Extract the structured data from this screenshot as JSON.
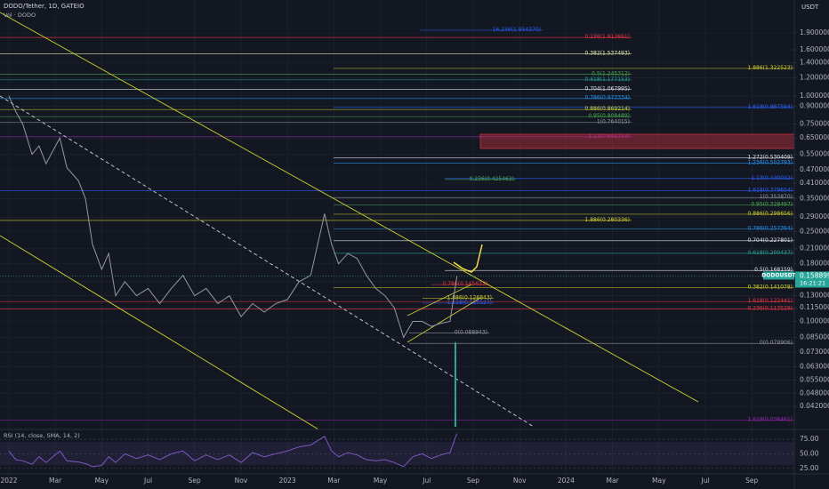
{
  "chart_data": {
    "type": "line",
    "title": "DODO/Tether, 1D, GATEIO",
    "subtitle": "Vol · DODO",
    "y_axis_label": "USDT",
    "log_scale": true,
    "grid": true,
    "symbol": "DODOUSDT",
    "countdown": "16:21:21",
    "last_price": {
      "value": 0.158899,
      "label": "0.158899"
    },
    "x": [
      0,
      0.3,
      0.6,
      1.0,
      1.3,
      1.6,
      2.2,
      2.5,
      3.0,
      3.3,
      3.6,
      4.0,
      4.3,
      4.6,
      5.0,
      5.5,
      6.0,
      6.5,
      7.0,
      7.5,
      8.0,
      8.5,
      9.0,
      9.5,
      10.0,
      10.5,
      11.0,
      11.5,
      12.0,
      12.5,
      13.0,
      13.6,
      13.9,
      14.2,
      14.6,
      15.0,
      15.4,
      15.8,
      16.2,
      16.6,
      17.0,
      17.4,
      17.8,
      18.2,
      18.6,
      19.0,
      19.3
    ],
    "series": [
      {
        "name": "DODOUSDT",
        "color": "#9598a1",
        "values": [
          1.0,
          0.85,
          0.75,
          0.55,
          0.6,
          0.5,
          0.65,
          0.48,
          0.42,
          0.35,
          0.22,
          0.17,
          0.2,
          0.13,
          0.15,
          0.13,
          0.14,
          0.12,
          0.14,
          0.16,
          0.13,
          0.14,
          0.12,
          0.13,
          0.105,
          0.12,
          0.11,
          0.12,
          0.125,
          0.15,
          0.16,
          0.3,
          0.22,
          0.18,
          0.2,
          0.19,
          0.16,
          0.14,
          0.13,
          0.115,
          0.085,
          0.1,
          0.1,
          0.095,
          0.098,
          0.1,
          0.158899
        ]
      }
    ],
    "xlim": [
      -0.38,
      33.83
    ],
    "xticks": [
      {
        "value": 0,
        "label": "2022"
      },
      {
        "value": 2,
        "label": "Mar"
      },
      {
        "value": 4,
        "label": "May"
      },
      {
        "value": 6,
        "label": "Jul"
      },
      {
        "value": 8,
        "label": "Sep"
      },
      {
        "value": 10,
        "label": "Nov"
      },
      {
        "value": 12,
        "label": "2023"
      },
      {
        "value": 14,
        "label": "Mar"
      },
      {
        "value": 16,
        "label": "May"
      },
      {
        "value": 18,
        "label": "Jul"
      },
      {
        "value": 20,
        "label": "Sep"
      },
      {
        "value": 22,
        "label": "Nov"
      },
      {
        "value": 24,
        "label": "2024"
      },
      {
        "value": 26,
        "label": "Mar"
      },
      {
        "value": 28,
        "label": "May"
      },
      {
        "value": 30,
        "label": "Jul"
      },
      {
        "value": 32,
        "label": "Sep"
      }
    ],
    "ylim": [
      0.0332,
      2.659
    ],
    "yticks": [
      {
        "value": 1.9,
        "label": "1.900000"
      },
      {
        "value": 1.6,
        "label": "1.600000"
      },
      {
        "value": 1.4,
        "label": "1.400000"
      },
      {
        "value": 1.2,
        "label": "1.200000"
      },
      {
        "value": 1.0,
        "label": "1.000000"
      },
      {
        "value": 0.9,
        "label": "0.900000"
      },
      {
        "value": 0.75,
        "label": "0.750000"
      },
      {
        "value": 0.65,
        "label": "0.650000"
      },
      {
        "value": 0.55,
        "label": "0.550000"
      },
      {
        "value": 0.47,
        "label": "0.470000"
      },
      {
        "value": 0.41,
        "label": "0.410000"
      },
      {
        "value": 0.35,
        "label": "0.350000"
      },
      {
        "value": 0.29,
        "label": "0.290000"
      },
      {
        "value": 0.25,
        "label": "0.250000"
      },
      {
        "value": 0.21,
        "label": "0.210000"
      },
      {
        "value": 0.18,
        "label": "0.180000"
      },
      {
        "value": 0.15,
        "label": "0.150000"
      },
      {
        "value": 0.13,
        "label": "0.130000"
      },
      {
        "value": 0.115,
        "label": "0.115000"
      },
      {
        "value": 0.1,
        "label": "0.100000"
      },
      {
        "value": 0.085,
        "label": "0.085000"
      },
      {
        "value": 0.073,
        "label": "0.073000"
      },
      {
        "value": 0.063,
        "label": "0.063000"
      },
      {
        "value": 0.055,
        "label": "0.055000"
      },
      {
        "value": 0.048,
        "label": "0.048000"
      },
      {
        "value": 0.042,
        "label": "0.042000"
      }
    ],
    "levels": [
      {
        "label": "16.236(1.954370)",
        "value": 1.95437,
        "color": "#2962ff"
      },
      {
        "label": "0.236(1.813691)",
        "value": 1.813691,
        "color": "#f23645"
      },
      {
        "label": "0.382(1.537493)",
        "value": 1.537493,
        "color": "#e8e8b0"
      },
      {
        "label": "1.886(1.322523)",
        "value": 1.322523,
        "color": "#d4d42a"
      },
      {
        "label": "0.5(1.245312)",
        "value": 1.245312,
        "color": "#4caf50"
      },
      {
        "label": "0.618(1.177153)",
        "value": 1.177153,
        "color": "#26a69a"
      },
      {
        "label": "0.704(1.067995)",
        "value": 1.067995,
        "color": "#e0e3eb"
      },
      {
        "label": "0.786(0.973334)",
        "value": 0.973334,
        "color": "#2196f3"
      },
      {
        "label": "1.618(0.887594)",
        "value": 0.887594,
        "color": "#2962ff"
      },
      {
        "label": "0.886(0.869214)",
        "value": 0.869214,
        "color": "#d4d42a"
      },
      {
        "label": "0.95(0.808489)",
        "value": 0.808489,
        "color": "#4caf50"
      },
      {
        "label": "1(0.764015)",
        "value": 0.764015,
        "color": "#9598a1"
      },
      {
        "label": "1.13(0.658753)",
        "value": 0.658753,
        "color": "#9c27b0"
      },
      {
        "label": "1.272(0.530409)",
        "value": 0.530409,
        "color": "#e0e3eb"
      },
      {
        "label": "1.236(0.502793)",
        "value": 0.502793,
        "color": "#2196f3"
      },
      {
        "label": "1.13(0.430032)",
        "value": 0.430032,
        "color": "#2962ff"
      },
      {
        "label": "0.236(0.425463)",
        "value": 0.425463,
        "color": "#4caf50"
      },
      {
        "label": "1.618(0.379654)",
        "value": 0.379654,
        "color": "#2962ff"
      },
      {
        "label": "1(0.353870)",
        "value": 0.35387,
        "color": "#9598a1"
      },
      {
        "label": "0.95(0.328497)",
        "value": 0.328497,
        "color": "#4caf50"
      },
      {
        "label": "0.886(0.298656)",
        "value": 0.298656,
        "color": "#d4d42a"
      },
      {
        "label": "1.886(0.280336)",
        "value": 0.280336,
        "color": "#d4d42a"
      },
      {
        "label": "0.786(0.257364)",
        "value": 0.257364,
        "color": "#2196f3"
      },
      {
        "label": "0.704(0.227801)",
        "value": 0.227801,
        "color": "#e0e3eb"
      },
      {
        "label": "0.618(0.200437)",
        "value": 0.200437,
        "color": "#26a69a"
      },
      {
        "label": "0.5(0.168159)",
        "value": 0.168159,
        "color": "#e0e3eb"
      },
      {
        "label": "0.786(0.145633)",
        "value": 0.145633,
        "color": "#f23645"
      },
      {
        "label": "0.382(0.141078)",
        "value": 0.141078,
        "color": "#d4d42a"
      },
      {
        "label": "1.886(0.126843)",
        "value": 0.126843,
        "color": "#d4d42a"
      },
      {
        "label": "1.618(0.122441)",
        "value": 0.122441,
        "color": "#f23645"
      },
      {
        "label": "1.618(0.120527)",
        "value": 0.120527,
        "color": "#2962ff"
      },
      {
        "label": "0.236(0.113529)",
        "value": 0.113529,
        "color": "#f23645"
      },
      {
        "label": "0(0.088943)",
        "value": 0.088943,
        "color": "#9598a1"
      },
      {
        "label": "0(0.079906)",
        "value": 0.079906,
        "color": "#9598a1"
      },
      {
        "label": "1.618(0.036461)",
        "value": 0.036461,
        "color": "#9c27b0"
      }
    ],
    "rsi": {
      "title": "RSI (14, close, SMA, 14, 2)",
      "color": "#7e57c2",
      "values": [
        55,
        40,
        38,
        32,
        45,
        35,
        55,
        38,
        36,
        33,
        28,
        30,
        45,
        35,
        50,
        42,
        48,
        40,
        50,
        55,
        38,
        48,
        40,
        48,
        35,
        52,
        45,
        50,
        55,
        62,
        65,
        80,
        55,
        45,
        52,
        48,
        40,
        38,
        40,
        35,
        28,
        45,
        50,
        42,
        48,
        52,
        85
      ],
      "ylim": [
        17,
        92
      ],
      "yticks": [
        {
          "value": 75,
          "label": "75.00"
        },
        {
          "value": 50,
          "label": "50.00"
        },
        {
          "value": 25,
          "label": "25.00"
        }
      ]
    }
  }
}
